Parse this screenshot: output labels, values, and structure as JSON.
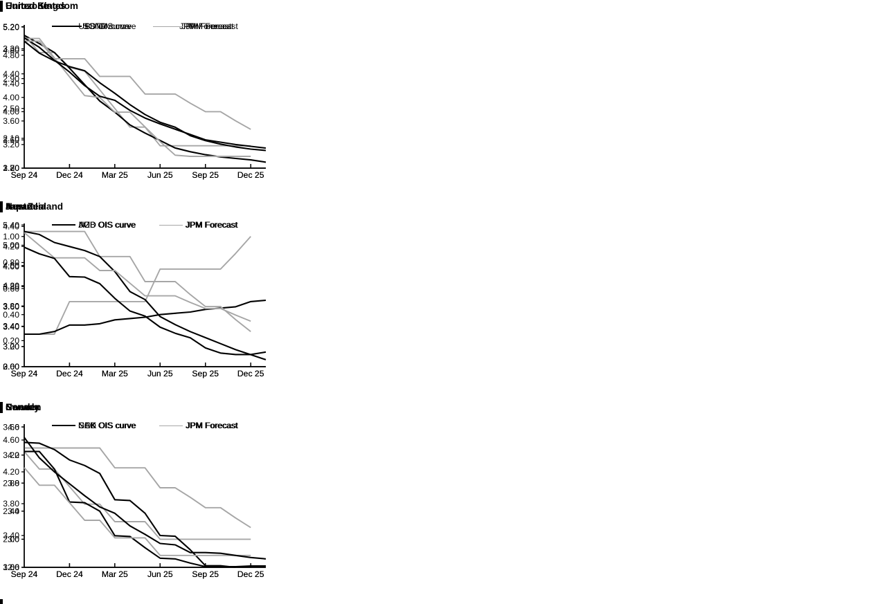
{
  "page": {
    "background": "#ffffff",
    "line_black": "#000000",
    "line_gray": "#a6a6a6"
  },
  "x_axis": {
    "tick_labels": [
      "Sep 24",
      "Dec 24",
      "Mar 25",
      "Jun 25",
      "Sep 25",
      "Dec 25"
    ],
    "tick_months": [
      0,
      3,
      6,
      9,
      12,
      15
    ],
    "months_span": 16
  },
  "chart_data": [
    {
      "type": "line",
      "title": "Eurozone",
      "y_ticks": [
        "1.70",
        "2.10",
        "2.50",
        "2.90",
        "3.30"
      ],
      "y_axis": {
        "min": 1.7,
        "max": 3.62
      },
      "legend_position": "top-center",
      "grid": false,
      "series": [
        {
          "name": "€STR curve",
          "color": "#000000",
          "width": 2.1,
          "values": [
            3.48,
            3.37,
            3.25,
            3.04,
            2.82,
            2.6,
            2.45,
            2.28,
            2.17,
            2.07,
            1.97,
            1.92,
            1.88,
            1.85,
            1.83,
            1.81,
            1.78
          ]
        },
        {
          "name": "JPM Forecast",
          "color": "#a6a6a6",
          "width": 1.9,
          "values": [
            3.48,
            3.25,
            3.25,
            3.05,
            3.0,
            2.75,
            2.5,
            2.25,
            2.25,
            2.0,
            2.0,
            2.0,
            2.0,
            2.0,
            2.0,
            2.0
          ]
        }
      ]
    },
    {
      "type": "line",
      "title": "United States",
      "y_ticks": [
        "2.80",
        "3.20",
        "3.60",
        "4.00",
        "4.40",
        "4.80",
        "5.20"
      ],
      "y_axis": {
        "min": 2.8,
        "max": 5.23
      },
      "legend_position": "top-center",
      "grid": false,
      "series": [
        {
          "name": "USD OIS curve",
          "color": "#000000",
          "width": 2.1,
          "values": [
            5.01,
            4.85,
            4.63,
            4.43,
            4.2,
            4.02,
            3.95,
            3.78,
            3.65,
            3.55,
            3.46,
            3.37,
            3.28,
            3.24,
            3.2,
            3.17,
            3.14
          ]
        },
        {
          "name": "JPM Forecast",
          "color": "#a6a6a6",
          "width": 1.9,
          "values": [
            5.0,
            5.0,
            4.67,
            4.35,
            4.03,
            4.0,
            3.75,
            3.75,
            3.5,
            3.25,
            3.02,
            3.0,
            3.0,
            3.0,
            3.0,
            3.0
          ]
        }
      ]
    },
    {
      "type": "line",
      "title": "United Kingdom",
      "y_ticks": [
        "3.20",
        "3.60",
        "4.00",
        "4.40",
        "4.80",
        "5.20"
      ],
      "y_axis": {
        "min": 3.2,
        "max": 5.23
      },
      "legend_position": "top-center",
      "grid": false,
      "series": [
        {
          "name": "SONIA curve",
          "color": "#000000",
          "width": 2.1,
          "values": [
            5.0,
            4.83,
            4.72,
            4.64,
            4.58,
            4.41,
            4.26,
            4.1,
            3.96,
            3.85,
            3.78,
            3.66,
            3.59,
            3.54,
            3.5,
            3.47,
            3.45
          ]
        },
        {
          "name": "JPM Forecast",
          "color": "#a6a6a6",
          "width": 1.9,
          "values": [
            5.0,
            5.0,
            4.75,
            4.75,
            4.75,
            4.5,
            4.5,
            4.5,
            4.25,
            4.25,
            4.25,
            4.12,
            4.0,
            4.0,
            3.87,
            3.75
          ]
        }
      ]
    },
    {
      "type": "line",
      "title": "Japan",
      "y_ticks": [
        "0.00",
        "0.20",
        "0.40",
        "0.60",
        "0.80",
        "1.00"
      ],
      "y_axis": {
        "min": 0.0,
        "max": 1.1
      },
      "legend_position": "top-center",
      "grid": false,
      "series": [
        {
          "name": "JGB OIS curve",
          "color": "#000000",
          "width": 2.1,
          "values": [
            0.25,
            0.25,
            0.27,
            0.32,
            0.32,
            0.33,
            0.36,
            0.37,
            0.38,
            0.4,
            0.41,
            0.42,
            0.44,
            0.45,
            0.46,
            0.5,
            0.51
          ]
        },
        {
          "name": "JPM Forecast",
          "color": "#a6a6a6",
          "width": 1.9,
          "values": [
            0.25,
            0.25,
            0.25,
            0.5,
            0.5,
            0.5,
            0.5,
            0.5,
            0.5,
            0.75,
            0.75,
            0.75,
            0.75,
            0.75,
            0.87,
            1.0
          ]
        }
      ]
    },
    {
      "type": "line",
      "title": "Australia",
      "y_ticks": [
        "3.00",
        "3.20",
        "3.40",
        "3.60",
        "3.80",
        "4.00",
        "4.20",
        "4.40"
      ],
      "y_axis": {
        "min": 3.0,
        "max": 4.43
      },
      "legend_position": "top-center",
      "grid": false,
      "series": [
        {
          "name": "AUD OIS curve",
          "color": "#000000",
          "width": 2.1,
          "values": [
            4.35,
            4.32,
            4.24,
            4.2,
            4.16,
            4.1,
            3.95,
            3.75,
            3.67,
            3.5,
            3.42,
            3.35,
            3.29,
            3.23,
            3.17,
            3.12,
            3.07
          ]
        },
        {
          "name": "JPM Forecast",
          "color": "#a6a6a6",
          "width": 1.9,
          "values": [
            4.35,
            4.35,
            4.35,
            4.35,
            4.35,
            4.1,
            4.1,
            4.1,
            3.85,
            3.85,
            3.85,
            3.72,
            3.6,
            3.6,
            3.47,
            3.35
          ]
        }
      ]
    },
    {
      "type": "line",
      "title": "New Zealand",
      "y_ticks": [
        "2.60",
        "3.00",
        "3.40",
        "3.80",
        "4.20",
        "4.60",
        "5.00",
        "5.40"
      ],
      "y_axis": {
        "min": 2.6,
        "max": 5.43
      },
      "legend_position": "top-center",
      "grid": false,
      "series": [
        {
          "name": "NZD OIS curve",
          "color": "#000000",
          "width": 2.1,
          "values": [
            4.96,
            4.83,
            4.74,
            4.38,
            4.37,
            4.24,
            3.95,
            3.7,
            3.6,
            3.38,
            3.26,
            3.17,
            2.97,
            2.87,
            2.84,
            2.84,
            2.89
          ]
        },
        {
          "name": "JPM Forecast",
          "color": "#a6a6a6",
          "width": 1.9,
          "values": [
            5.25,
            5.0,
            4.75,
            4.75,
            4.75,
            4.5,
            4.5,
            4.25,
            4.0,
            4.0,
            4.0,
            3.87,
            3.75,
            3.75,
            3.62,
            3.5
          ]
        }
      ]
    },
    {
      "type": "line",
      "title": "Sweden",
      "y_ticks": [
        "1.60",
        "2.00",
        "2.40",
        "2.80",
        "3.20",
        "3.60"
      ],
      "y_axis": {
        "min": 1.6,
        "max": 3.64
      },
      "legend_position": "top-center",
      "grid": false,
      "series": [
        {
          "name": "SEK OIS curve",
          "color": "#000000",
          "width": 2.1,
          "values": [
            3.25,
            3.25,
            3.0,
            2.53,
            2.52,
            2.4,
            2.05,
            2.04,
            1.88,
            1.73,
            1.72,
            1.66,
            1.61,
            1.61,
            1.61,
            1.62,
            1.62
          ]
        },
        {
          "name": "JPM Forecast",
          "color": "#a6a6a6",
          "width": 1.9,
          "values": [
            3.25,
            3.0,
            3.0,
            2.75,
            2.5,
            2.5,
            2.25,
            2.25,
            2.25,
            2.0,
            2.0,
            2.0,
            2.0,
            2.0,
            2.0,
            2.0
          ]
        }
      ]
    },
    {
      "type": "line",
      "title": "Norway",
      "y_ticks": [
        "3.00",
        "3.40",
        "3.80",
        "4.20",
        "4.60"
      ],
      "y_axis": {
        "min": 3.0,
        "max": 4.8
      },
      "legend_position": "top-center",
      "grid": false,
      "series": [
        {
          "name": "NOK OIS curve",
          "color": "#000000",
          "width": 2.1,
          "values": [
            4.57,
            4.56,
            4.48,
            4.35,
            4.28,
            4.18,
            3.85,
            3.84,
            3.68,
            3.4,
            3.39,
            3.22,
            3.02,
            3.02,
            3.0
          ]
        },
        {
          "name": "JPM Forecast",
          "color": "#a6a6a6",
          "width": 1.9,
          "values": [
            4.5,
            4.5,
            4.5,
            4.5,
            4.5,
            4.5,
            4.25,
            4.25,
            4.25,
            4.0,
            4.0,
            3.88,
            3.75,
            3.75,
            3.62,
            3.5
          ]
        }
      ]
    },
    {
      "type": "line",
      "title": "Canada",
      "y_ticks": [
        "2.6",
        "3.0",
        "3.4",
        "3.8",
        "4.2",
        "4.6"
      ],
      "y_axis": {
        "min": 2.6,
        "max": 4.64
      },
      "legend_position": "top-center",
      "grid": false,
      "series": [
        {
          "name": "CAD OIS curve",
          "color": "#000000",
          "width": 2.1,
          "values": [
            4.45,
            4.16,
            3.96,
            3.79,
            3.62,
            3.46,
            3.37,
            3.19,
            3.07,
            2.94,
            2.92,
            2.81,
            2.81,
            2.8,
            2.77,
            2.74,
            2.72
          ]
        },
        {
          "name": "JPM Forecast",
          "color": "#a6a6a6",
          "width": 1.9,
          "values": [
            4.02,
            3.77,
            3.77,
            3.52,
            3.27,
            3.27,
            3.02,
            3.02,
            3.02,
            2.77,
            2.77,
            2.77,
            2.77,
            2.77,
            2.77,
            2.77
          ]
        }
      ]
    }
  ]
}
